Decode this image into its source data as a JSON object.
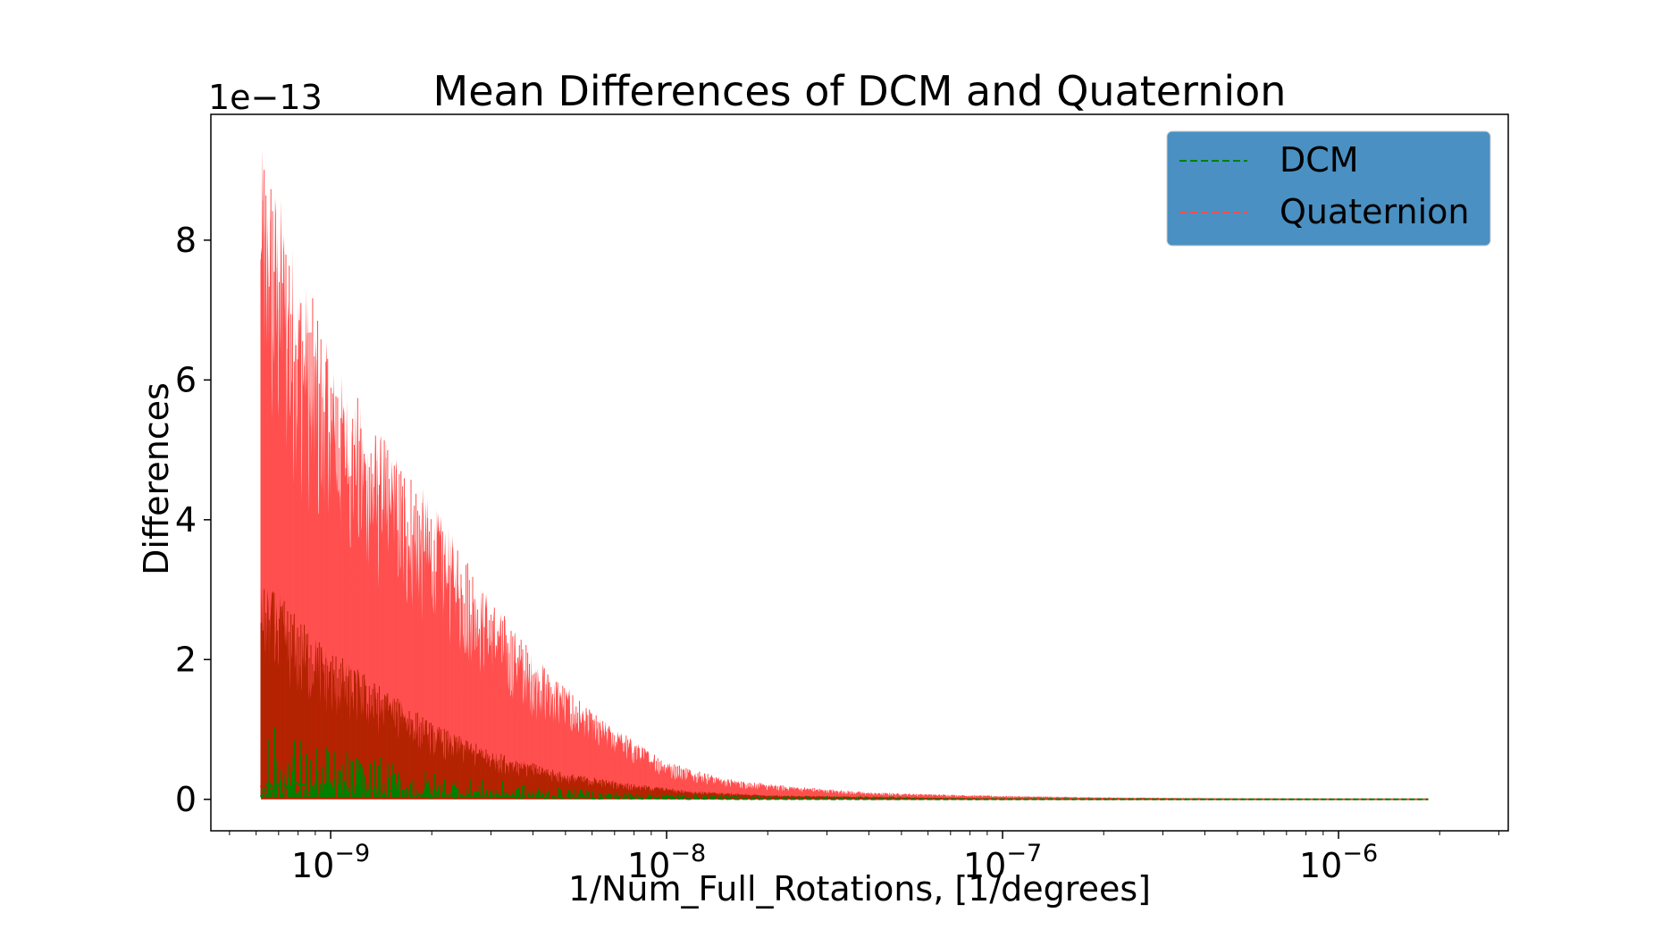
{
  "chart_data": {
    "type": "line",
    "title": "Mean Differences of DCM and Quaternion",
    "xlabel": "1/Num_Full_Rotations, [1/degrees]",
    "ylabel": "Differences",
    "y_offset_text": "1e−13",
    "x_scale": "log",
    "xlim": [
      4.4e-10,
      3.2e-06
    ],
    "ylim": [
      -0.45,
      9.8
    ],
    "x_ticks": [
      {
        "value": 1e-09,
        "base": "10",
        "exp": "−9"
      },
      {
        "value": 1e-08,
        "base": "10",
        "exp": "−8"
      },
      {
        "value": 1e-07,
        "base": "10",
        "exp": "−7"
      },
      {
        "value": 1e-06,
        "base": "10",
        "exp": "−6"
      }
    ],
    "y_ticks": [
      {
        "value": 0,
        "label": "0"
      },
      {
        "value": 2,
        "label": "2"
      },
      {
        "value": 4,
        "label": "4"
      },
      {
        "value": 6,
        "label": "6"
      },
      {
        "value": 8,
        "label": "8"
      }
    ],
    "grid": false,
    "legend_position": "top-right",
    "legend_bg": "#4a90c2",
    "series": [
      {
        "name": "DCM",
        "color": "#008000",
        "fill_color": "#b22200",
        "style": "dashed",
        "x": [
          6.2e-10,
          7e-10,
          8e-10,
          1e-09,
          1.5e-09,
          2e-09,
          3e-09,
          5e-09,
          8e-09,
          1.2e-08,
          2e-08,
          5e-08,
          1e-07,
          3e-07,
          1e-06,
          1.85e-06
        ],
        "max": [
          3.1,
          2.95,
          2.6,
          2.15,
          1.55,
          1.1,
          0.7,
          0.38,
          0.22,
          0.12,
          0.06,
          0.03,
          0.015,
          0.01,
          0.005,
          0.004
        ],
        "min": [
          0.05,
          0.04,
          0.04,
          0.03,
          0.02,
          0.02,
          0.01,
          0.01,
          0.005,
          0.003,
          0.002,
          0.001,
          0.001,
          0.001,
          0.0,
          0.0
        ]
      },
      {
        "name": "Quaternion",
        "color": "#ff4f4f",
        "fill_color": "#ff4f4f",
        "style": "dashed",
        "x": [
          6.2e-10,
          6.5e-10,
          7e-10,
          8e-10,
          1e-09,
          1.3e-09,
          1.6e-09,
          2e-09,
          3e-09,
          4e-09,
          6e-09,
          1e-08,
          1.5e-08,
          2e-08,
          4e-08,
          1e-07,
          2e-07,
          5e-07,
          1e-06,
          1.85e-06
        ],
        "max": [
          9.35,
          9.2,
          8.8,
          7.8,
          6.4,
          5.5,
          4.9,
          4.3,
          2.9,
          2.1,
          1.25,
          0.55,
          0.3,
          0.22,
          0.1,
          0.05,
          0.03,
          0.015,
          0.01,
          0.005
        ],
        "min": [
          0.05,
          0.05,
          0.04,
          0.04,
          0.03,
          0.03,
          0.02,
          0.02,
          0.02,
          0.01,
          0.01,
          0.01,
          0.005,
          0.005,
          0.002,
          0.001,
          0.001,
          0.0,
          0.0,
          0.0
        ]
      }
    ]
  }
}
